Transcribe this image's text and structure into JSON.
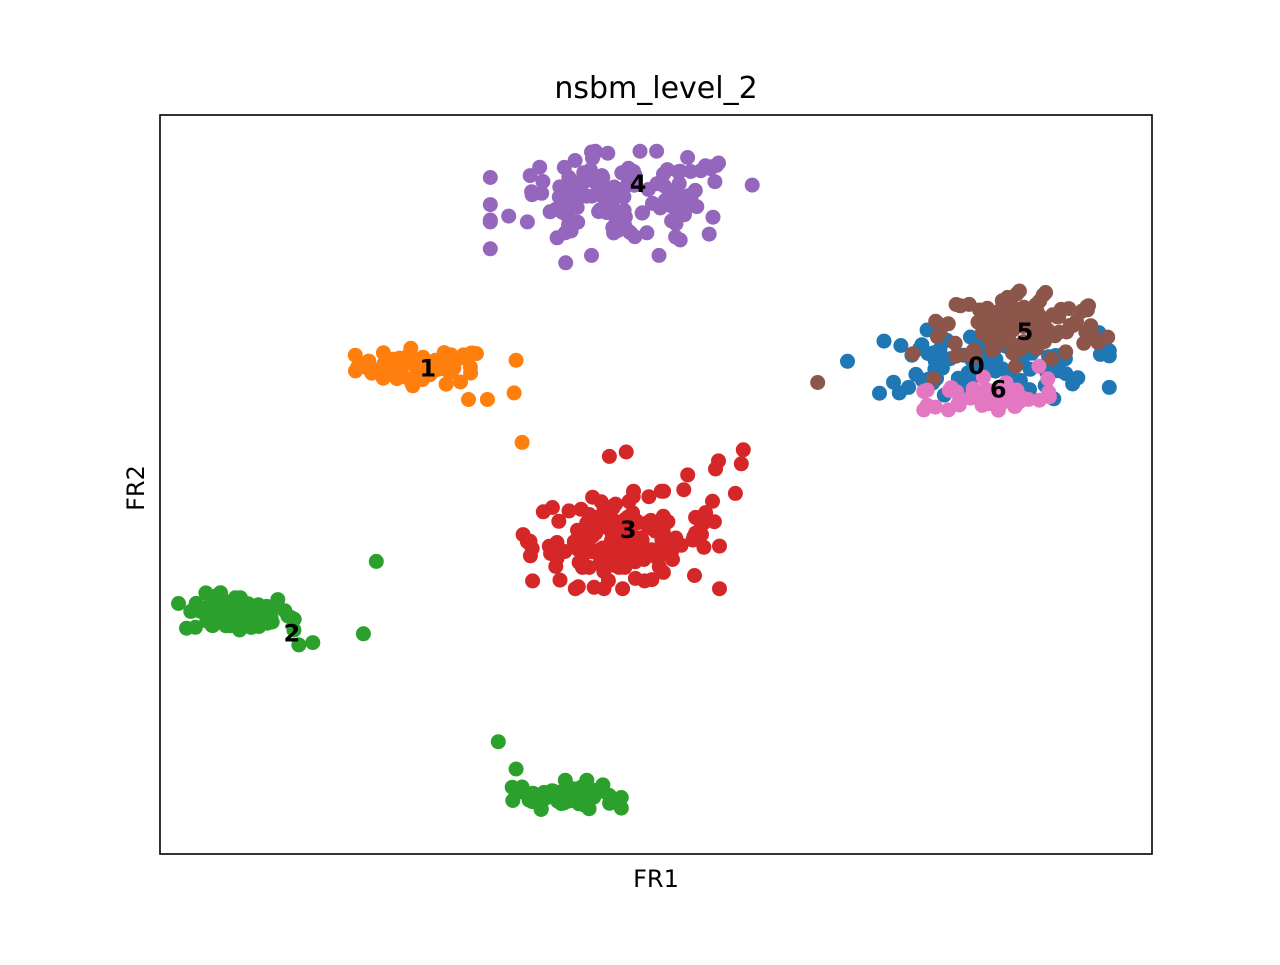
{
  "chart_data": {
    "type": "scatter",
    "title": "nsbm_level_2",
    "xlabel": "FR1",
    "ylabel": "FR2",
    "xlim": [
      0,
      100
    ],
    "ylim": [
      0,
      100
    ],
    "ticks_visible": false,
    "grid": false,
    "legend": "on data",
    "series": [
      {
        "name": "0",
        "color": "#1f77b4",
        "label_pos": [
          82.3,
          66.2
        ],
        "clusters": [
          {
            "cx": 82.5,
            "cy": 66.5,
            "sx": 6.0,
            "sy": 2.0,
            "n": 90
          }
        ],
        "extras": [
          [
            75.8,
            67.5
          ],
          [
            76.2,
            64.9
          ],
          [
            92.0,
            63.6
          ],
          [
            94.8,
            67.6
          ],
          [
            90.1,
            61.6
          ]
        ]
      },
      {
        "name": "1",
        "color": "#ff7f0e",
        "label_pos": [
          27.0,
          65.8
        ],
        "clusters": [
          {
            "cx": 26.5,
            "cy": 66.0,
            "sx": 3.3,
            "sy": 1.2,
            "n": 65
          }
        ],
        "extras": [
          [
            35.9,
            66.8
          ],
          [
            35.7,
            62.4
          ],
          [
            33.0,
            61.5
          ],
          [
            31.1,
            61.5
          ],
          [
            36.5,
            55.7
          ]
        ]
      },
      {
        "name": "2",
        "color": "#2ca02c",
        "label_pos": [
          13.3,
          30.0
        ],
        "clusters": [
          {
            "cx": 7.8,
            "cy": 32.5,
            "sx": 2.7,
            "sy": 1.3,
            "n": 90
          },
          {
            "cx": 41.0,
            "cy": 8.0,
            "sx": 2.5,
            "sy": 0.9,
            "n": 60
          }
        ],
        "extras": [
          [
            21.8,
            39.6
          ],
          [
            20.5,
            29.8
          ],
          [
            13.5,
            30.3
          ],
          [
            15.4,
            28.6
          ],
          [
            14.0,
            28.3
          ],
          [
            13.2,
            32.0
          ],
          [
            34.1,
            15.2
          ],
          [
            35.9,
            11.5
          ]
        ]
      },
      {
        "name": "3",
        "color": "#d62728",
        "label_pos": [
          47.2,
          44.0
        ],
        "clusters": [
          {
            "cx": 46.5,
            "cy": 42.5,
            "sx": 4.5,
            "sy": 3.0,
            "n": 150
          }
        ],
        "extras": [
          [
            45.3,
            53.8
          ],
          [
            47.0,
            54.4
          ],
          [
            56.3,
            53.2
          ],
          [
            56.0,
            52.1
          ],
          [
            58.8,
            54.7
          ],
          [
            58.6,
            52.8
          ],
          [
            53.2,
            51.3
          ],
          [
            58.0,
            48.8
          ],
          [
            52.8,
            49.3
          ],
          [
            55.0,
            46.2
          ],
          [
            54.8,
            44.8
          ],
          [
            45.2,
            37.0
          ]
        ]
      },
      {
        "name": "4",
        "color": "#9467bd",
        "label_pos": [
          48.2,
          90.8
        ],
        "clusters": [
          {
            "cx": 46.5,
            "cy": 88.5,
            "sx": 6.0,
            "sy": 3.0,
            "n": 130
          }
        ],
        "extras": [
          [
            40.9,
            80.0
          ],
          [
            43.5,
            81.0
          ],
          [
            50.3,
            81.0
          ],
          [
            38.6,
            91.0
          ],
          [
            43.5,
            95.0
          ],
          [
            55.6,
            93.0
          ],
          [
            56.3,
            93.5
          ]
        ]
      },
      {
        "name": "5",
        "color": "#8c564b",
        "label_pos": [
          87.2,
          70.8
        ],
        "clusters": [
          {
            "cx": 87.0,
            "cy": 71.5,
            "sx": 4.0,
            "sy": 2.5,
            "n": 120
          }
        ],
        "extras": [
          [
            66.3,
            63.8
          ],
          [
            93.6,
            74.2
          ],
          [
            93.8,
            70.1
          ],
          [
            78.0,
            64.3
          ],
          [
            75.9,
            67.7
          ]
        ]
      },
      {
        "name": "6",
        "color": "#e377c2",
        "label_pos": [
          84.5,
          63.0
        ],
        "clusters": [
          {
            "cx": 83.5,
            "cy": 61.8,
            "sx": 2.8,
            "sy": 0.9,
            "n": 50
          }
        ],
        "extras": [
          [
            77.0,
            62.6
          ],
          [
            77.0,
            60.1
          ],
          [
            89.5,
            64.3
          ],
          [
            88.6,
            66.0
          ],
          [
            83.0,
            64.5
          ]
        ]
      }
    ]
  }
}
